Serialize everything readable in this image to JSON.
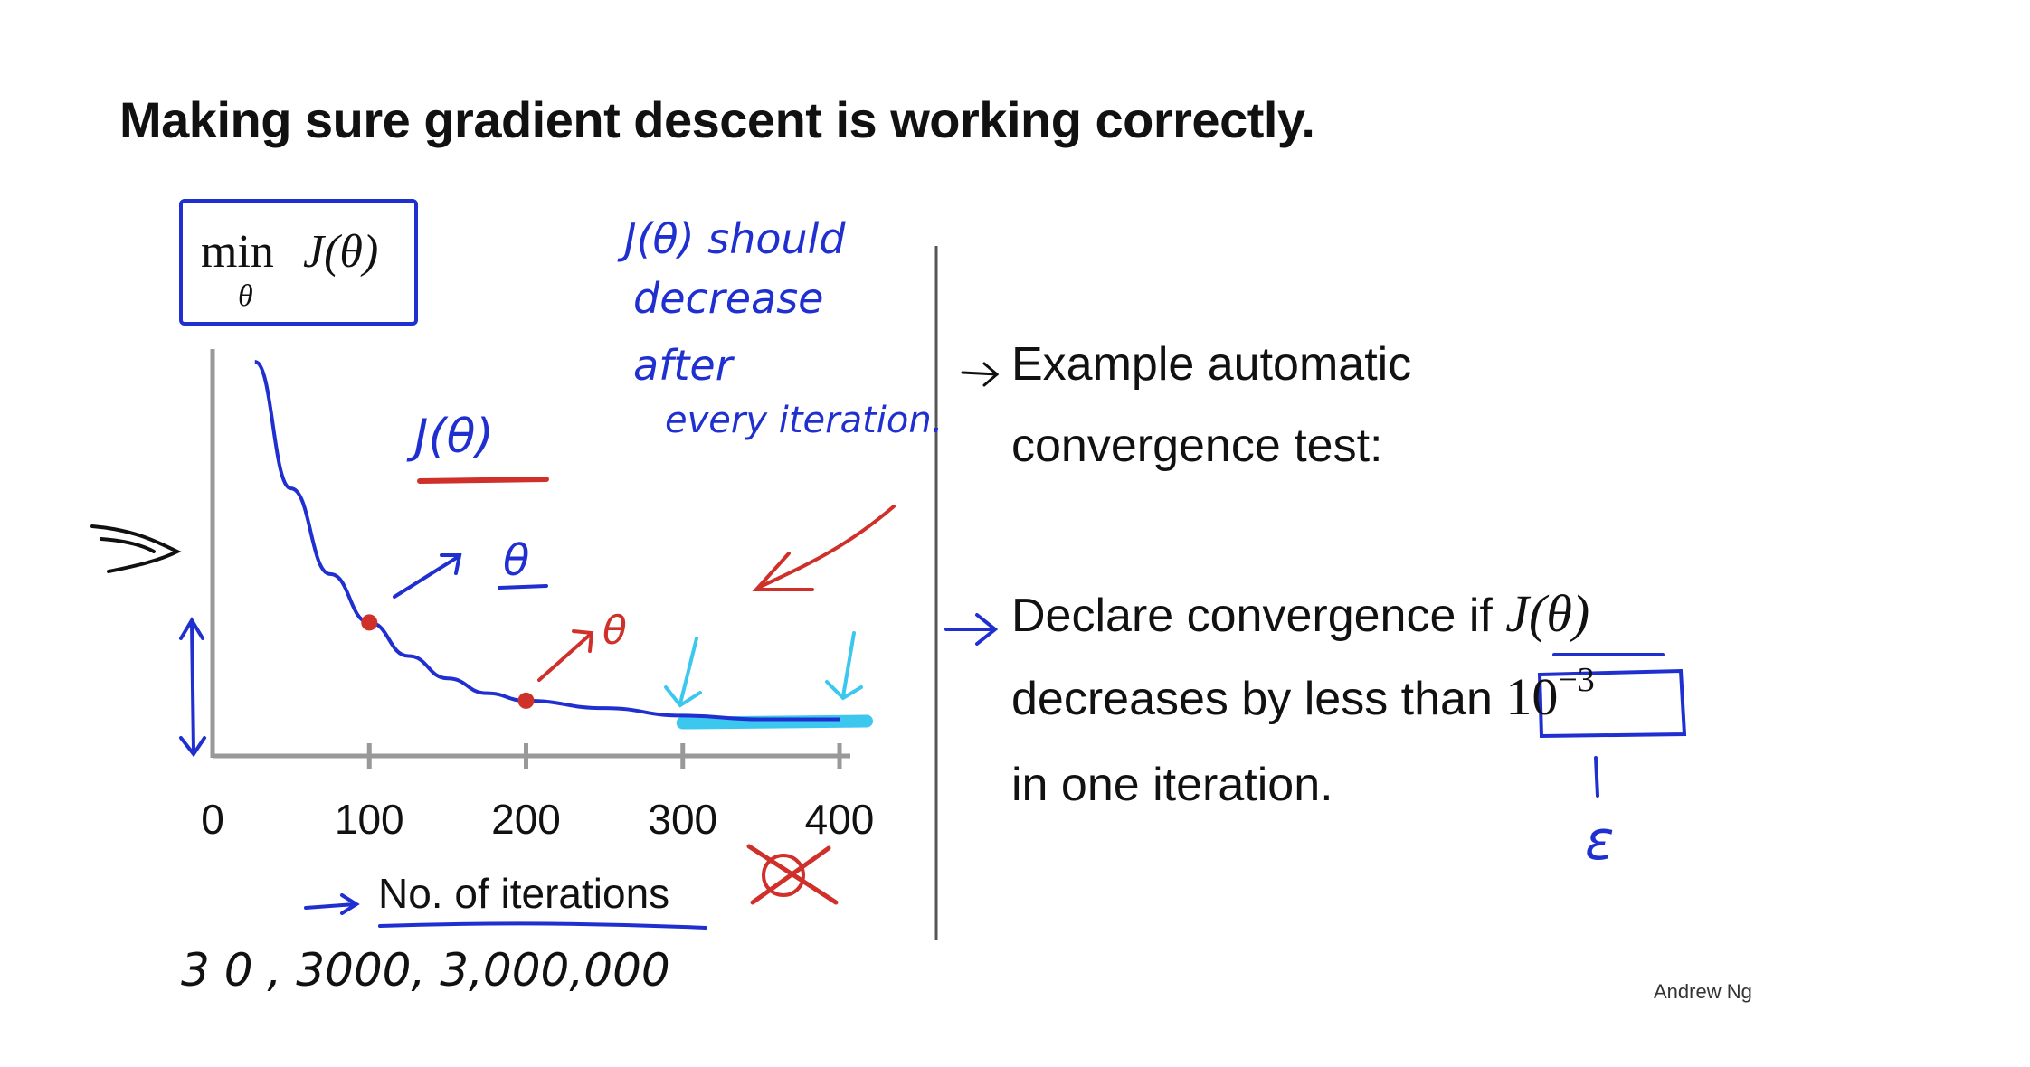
{
  "slide": {
    "title": "Making sure gradient descent is working correctly.",
    "author": "Andrew Ng"
  },
  "objective": {
    "min": "min",
    "subscript": "θ",
    "expr": "J(θ)"
  },
  "bullets": [
    {
      "lines": [
        "Example automatic",
        "convergence test:"
      ]
    },
    {
      "line1_prefix": "Declare convergence if ",
      "line1_math": "J(θ)",
      "line2_prefix": "decreases by less than ",
      "line2_math_base": "10",
      "line2_math_exp": "−3",
      "line3": "in one iteration."
    }
  ],
  "annotations": {
    "should_decrease": [
      "J(θ) should",
      "decrease",
      "after",
      "every iteration."
    ],
    "j_theta": "J(θ)",
    "theta_1": "θ",
    "theta_2": "θ",
    "epsilon": "ε",
    "iteration_examples": "3 0 ,   3000,   3,000,000"
  },
  "colors": {
    "curve": "#1f2fd0",
    "pen_blue": "#1f2fd0",
    "pen_red": "#d0302a",
    "highlight_cyan": "#3cc7ee",
    "axis": "#999999"
  },
  "chart_data": {
    "type": "line",
    "title": "",
    "xlabel": "No. of iterations",
    "ylabel": "",
    "xlim": [
      0,
      400
    ],
    "x_ticks": [
      "0",
      "100",
      "200",
      "300",
      "400"
    ],
    "series": [
      {
        "x": [
          27,
          50,
          75,
          100,
          125,
          150,
          175,
          200,
          250,
          300,
          350,
          400
        ],
        "y": [
          1.0,
          0.66,
          0.43,
          0.3,
          0.21,
          0.15,
          0.11,
          0.09,
          0.07,
          0.05,
          0.04,
          0.04
        ]
      }
    ],
    "marked_points": [
      {
        "x": 100,
        "y": 0.3
      },
      {
        "x": 200,
        "y": 0.09
      }
    ],
    "grid": false
  }
}
